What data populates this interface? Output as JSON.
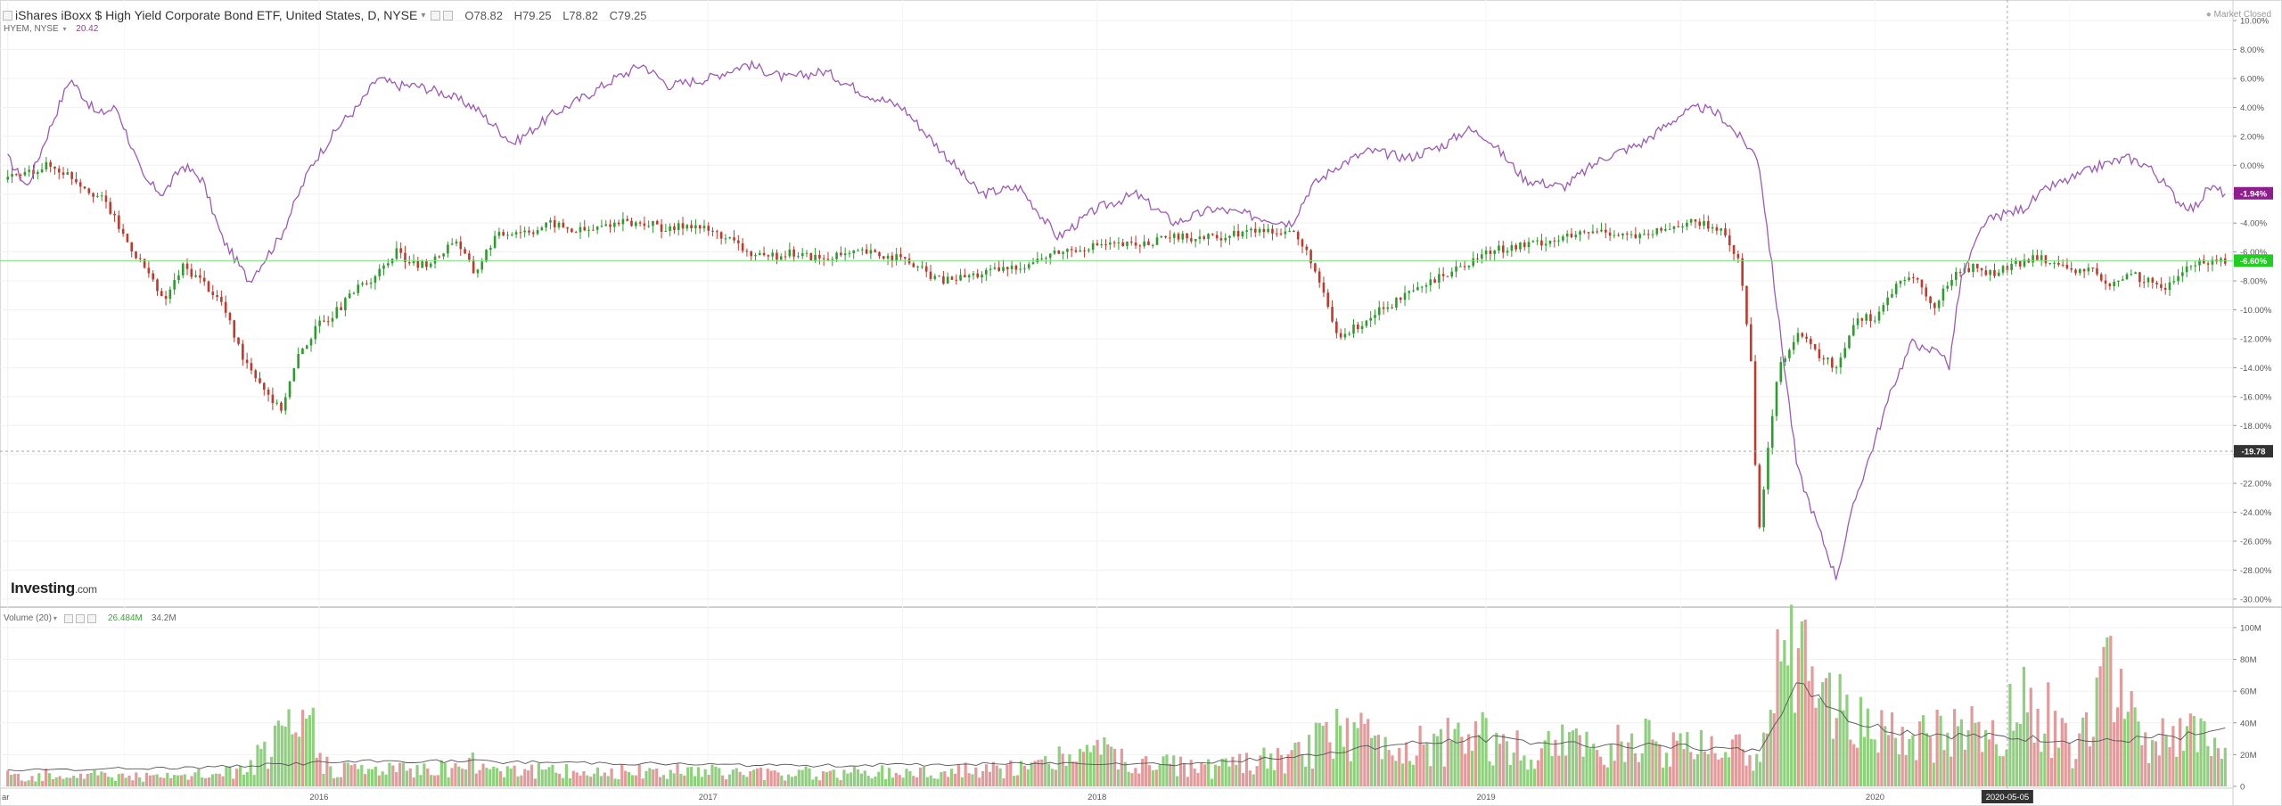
{
  "header": {
    "symbol_title": "iShares iBoxx $ High Yield Corporate Bond ETF, United States, D, NYSE",
    "open": "O78.82",
    "high": "H79.25",
    "low": "L78.82",
    "close": "C79.25",
    "market_status": "Market Closed"
  },
  "compare": {
    "label": "HYEM, NYSE",
    "value": "20.42"
  },
  "volume_panel": {
    "label": "Volume (20)",
    "current": "26.484M",
    "average": "34.2M"
  },
  "logo": {
    "brand": "Investing",
    "suffix": ".com"
  },
  "colors": {
    "hyg": "#2e8b57",
    "hyg_up": "#2e9b2e",
    "hyg_down": "#c0392b",
    "hyem": "#9b59b6",
    "vol_up": "#8fd07f",
    "vol_down": "#e39a9a",
    "green_badge": "#22cc22",
    "purple_badge": "#8e1e8e"
  },
  "chart_data": [
    {
      "type": "line",
      "title": "iShares iBoxx $ High Yield Corporate Bond ETF, United States, D, NYSE",
      "y_unit": "% change",
      "ylim": [
        -30.5,
        10.5
      ],
      "y_ticks": [
        "10.00%",
        "8.00%",
        "6.00%",
        "4.00%",
        "2.00%",
        "0.00%",
        "-2.00%",
        "-4.00%",
        "-6.00%",
        "-8.00%",
        "-10.00%",
        "-12.00%",
        "-14.00%",
        "-16.00%",
        "-18.00%",
        "-20.00%",
        "-22.00%",
        "-24.00%",
        "-26.00%",
        "-28.00%",
        "-30.00%"
      ],
      "x_ticks": [
        {
          "label": "ar",
          "t": 0.0
        },
        {
          "label": "2016",
          "t": 0.8
        },
        {
          "label": "2017",
          "t": 1.8
        },
        {
          "label": "2018",
          "t": 2.8
        },
        {
          "label": "2019",
          "t": 3.8
        },
        {
          "label": "2020",
          "t": 4.8
        },
        {
          "label": "2020-05-05",
          "t": 5.14
        }
      ],
      "crosshair": {
        "t": 5.14,
        "y": -19.78,
        "y_label": "-19.78"
      },
      "last_values": [
        {
          "name": "HYG",
          "value": -6.6,
          "label": "-6.60%"
        },
        {
          "name": "HYEM",
          "value": -1.94,
          "label": "-1.94%"
        }
      ],
      "series": [
        {
          "name": "HYEM",
          "kind": "line",
          "x": [
            0,
            0.05,
            0.1,
            0.16,
            0.23,
            0.28,
            0.35,
            0.4,
            0.45,
            0.5,
            0.55,
            0.62,
            0.7,
            0.78,
            0.86,
            0.9,
            0.95,
            1.0,
            1.05,
            1.12,
            1.2,
            1.3,
            1.4,
            1.5,
            1.56,
            1.6,
            1.63,
            1.7,
            1.8,
            1.9,
            2.0,
            2.1,
            2.2,
            2.3,
            2.4,
            2.5,
            2.6,
            2.7,
            2.8,
            2.9,
            3.0,
            3.1,
            3.2,
            3.3,
            3.35,
            3.42,
            3.5,
            3.6,
            3.7,
            3.75,
            3.8,
            3.9,
            4.0,
            4.1,
            4.2,
            4.3,
            4.35,
            4.4,
            4.5,
            4.6,
            4.7,
            4.75,
            4.85,
            4.9,
            4.93,
            4.96,
            4.99,
            5.02,
            5.05,
            5.08,
            5.12,
            5.18,
            5.25,
            5.3,
            5.38,
            5.45,
            5.5,
            5.55,
            5.58,
            5.62,
            5.66,
            5.7
          ],
          "y": [
            0.5,
            -1.5,
            2.0,
            6.0,
            3.5,
            4.0,
            -1.0,
            -2.0,
            0.0,
            -1.0,
            -5.0,
            -8.0,
            -5.0,
            0.0,
            3.0,
            4.0,
            6.0,
            5.5,
            5.5,
            5.0,
            4.0,
            1.5,
            3.5,
            5.0,
            6.0,
            6.5,
            7.0,
            5.5,
            6.0,
            7.0,
            6.0,
            6.5,
            5.0,
            4.0,
            1.0,
            -2.0,
            -1.5,
            -5.0,
            -3.0,
            -2.0,
            -4.0,
            -3.0,
            -3.5,
            -4.0,
            -1.5,
            0.0,
            1.0,
            0.5,
            1.5,
            2.5,
            2.0,
            -1.0,
            -1.5,
            0.5,
            1.5,
            3.5,
            4.0,
            3.5,
            0.5,
            -21.0,
            -28.5,
            -23.0,
            -15.0,
            -12.0,
            -13.0,
            -12.5,
            -14.0,
            -8.0,
            -6.0,
            -4.0,
            -3.5,
            -3.0,
            -1.5,
            -1.0,
            0.0,
            0.5,
            0.0,
            -1.5,
            -2.5,
            -3.0,
            -1.5,
            -1.94
          ]
        },
        {
          "name": "HYG",
          "kind": "candles",
          "x": [
            0,
            0.05,
            0.1,
            0.15,
            0.2,
            0.25,
            0.3,
            0.35,
            0.4,
            0.45,
            0.5,
            0.55,
            0.6,
            0.65,
            0.7,
            0.75,
            0.8,
            0.85,
            0.9,
            0.95,
            1.0,
            1.05,
            1.1,
            1.15,
            1.2,
            1.25,
            1.3,
            1.35,
            1.4,
            1.45,
            1.5,
            1.55,
            1.6,
            1.65,
            1.7,
            1.75,
            1.8,
            1.85,
            1.9,
            1.95,
            2.0,
            2.1,
            2.2,
            2.3,
            2.4,
            2.5,
            2.6,
            2.7,
            2.8,
            2.9,
            3.0,
            3.1,
            3.2,
            3.3,
            3.35,
            3.42,
            3.5,
            3.6,
            3.7,
            3.8,
            3.9,
            4.0,
            4.1,
            4.2,
            4.3,
            4.35,
            4.4,
            4.45,
            4.48,
            4.5,
            4.55,
            4.6,
            4.65,
            4.7,
            4.75,
            4.8,
            4.85,
            4.9,
            4.95,
            5.0,
            5.05,
            5.1,
            5.15,
            5.2,
            5.25,
            5.3,
            5.35,
            5.4,
            5.45,
            5.5,
            5.55,
            5.6,
            5.65,
            5.7
          ],
          "y": [
            -1.0,
            -0.5,
            0.0,
            -0.5,
            -1.5,
            -2.5,
            -5.0,
            -7.0,
            -9.5,
            -7.0,
            -8.0,
            -9.5,
            -13.0,
            -15.0,
            -17.0,
            -13.0,
            -11.0,
            -10.0,
            -8.5,
            -7.5,
            -6.0,
            -7.0,
            -6.5,
            -5.0,
            -7.5,
            -5.0,
            -4.5,
            -4.5,
            -4.0,
            -4.5,
            -4.5,
            -4.0,
            -4.0,
            -4.0,
            -4.5,
            -4.0,
            -4.5,
            -5.0,
            -6.0,
            -6.5,
            -6.0,
            -6.5,
            -6.0,
            -6.5,
            -8.0,
            -7.5,
            -7.0,
            -6.0,
            -5.5,
            -5.5,
            -5.0,
            -5.0,
            -4.5,
            -4.5,
            -6.5,
            -12.0,
            -10.5,
            -9.0,
            -7.5,
            -6.0,
            -5.5,
            -5.0,
            -4.5,
            -5.0,
            -4.0,
            -4.0,
            -4.5,
            -6.5,
            -13.0,
            -25.5,
            -14.0,
            -11.5,
            -13.0,
            -14.0,
            -10.5,
            -10.5,
            -8.5,
            -7.5,
            -10.0,
            -7.5,
            -7.0,
            -7.5,
            -7.0,
            -6.5,
            -6.5,
            -7.5,
            -7.0,
            -8.5,
            -7.5,
            -8.0,
            -8.5,
            -7.0,
            -6.6,
            -6.6
          ]
        }
      ]
    },
    {
      "type": "bar",
      "title": "Volume (20)",
      "y_unit": "shares",
      "ylim": [
        0,
        105000000
      ],
      "y_ticks": [
        "100M",
        "80M",
        "60M",
        "40M",
        "20M",
        "0"
      ],
      "series": [
        {
          "name": "Volume",
          "kind": "bar",
          "x": [
            0,
            0.2,
            0.4,
            0.6,
            0.78,
            0.8,
            0.82,
            1.0,
            1.2,
            1.4,
            1.6,
            1.8,
            2.0,
            2.2,
            2.4,
            2.6,
            2.7,
            2.8,
            2.9,
            3.0,
            3.1,
            3.2,
            3.3,
            3.4,
            3.5,
            3.6,
            3.7,
            3.8,
            3.9,
            4.0,
            4.1,
            4.2,
            4.3,
            4.4,
            4.5,
            4.55,
            4.6,
            4.65,
            4.7,
            4.8,
            4.9,
            5.0,
            5.1,
            5.2,
            5.3,
            5.4,
            5.5,
            5.6,
            5.7
          ],
          "y": [
            8000000,
            10000000,
            7000000,
            12000000,
            55000000,
            20000000,
            15000000,
            13000000,
            18000000,
            12000000,
            11000000,
            12000000,
            10000000,
            11000000,
            12000000,
            14000000,
            20000000,
            28000000,
            15000000,
            18000000,
            13000000,
            20000000,
            22000000,
            40000000,
            42000000,
            30000000,
            35000000,
            38000000,
            28000000,
            32000000,
            30000000,
            35000000,
            28000000,
            30000000,
            25000000,
            90000000,
            100000000,
            80000000,
            60000000,
            40000000,
            35000000,
            45000000,
            38000000,
            75000000,
            28000000,
            80000000,
            32000000,
            45000000,
            26484000
          ]
        },
        {
          "name": "MA",
          "kind": "line",
          "x": [
            0,
            0.5,
            0.8,
            1.0,
            1.5,
            2.0,
            2.5,
            2.8,
            3.0,
            3.3,
            3.5,
            3.8,
            4.0,
            4.3,
            4.5,
            4.55,
            4.6,
            4.65,
            4.75,
            4.85,
            5.0,
            5.2,
            5.4,
            5.6,
            5.7
          ],
          "y": [
            10000000,
            12000000,
            15000000,
            16000000,
            15000000,
            13000000,
            14000000,
            15000000,
            14000000,
            18000000,
            25000000,
            30000000,
            27000000,
            25000000,
            22000000,
            45000000,
            62000000,
            58000000,
            40000000,
            35000000,
            32000000,
            30000000,
            28000000,
            32000000,
            34200000
          ]
        }
      ]
    }
  ]
}
